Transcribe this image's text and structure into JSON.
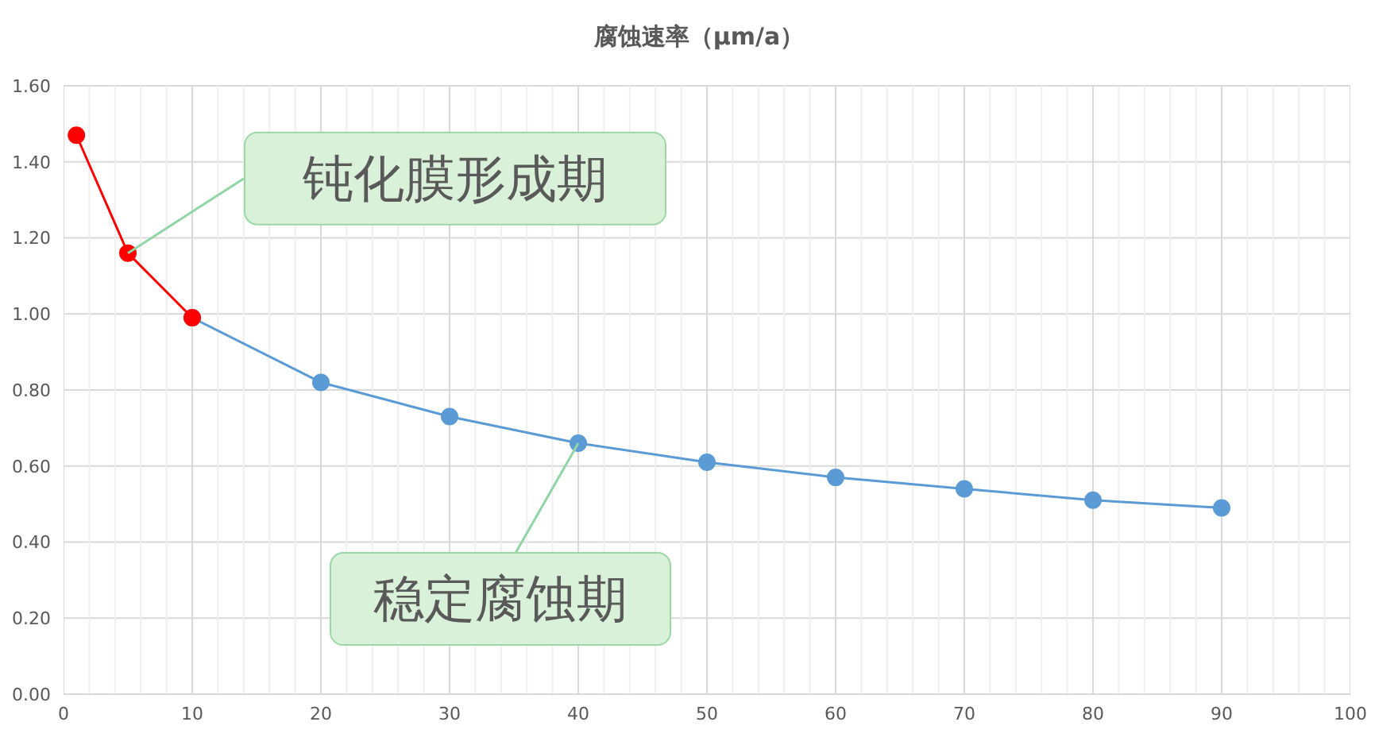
{
  "chart_data": {
    "type": "line",
    "title": "腐蚀速率（μm/a）",
    "series": [
      {
        "color": "#ff0000",
        "x": [
          1,
          5,
          10
        ],
        "values": [
          1.47,
          1.16,
          0.99
        ]
      },
      {
        "color": "#5b9bd5",
        "x": [
          10,
          20,
          30,
          40,
          50,
          60,
          70,
          80,
          90
        ],
        "values": [
          0.99,
          0.82,
          0.73,
          0.66,
          0.61,
          0.57,
          0.54,
          0.51,
          0.49
        ]
      }
    ],
    "xlim": [
      0,
      100
    ],
    "xticks": [
      0,
      {
        "value": 2,
        "label": null
      },
      {
        "value": 4,
        "label": null
      },
      {
        "value": 6,
        "label": null
      },
      {
        "value": 8,
        "label": null
      },
      10,
      {
        "value": 12,
        "label": null
      },
      {
        "value": 14,
        "label": null
      },
      {
        "value": 16,
        "label": null
      },
      {
        "value": 18,
        "label": null
      },
      20,
      {
        "value": 22,
        "label": null
      },
      {
        "value": 24,
        "label": null
      },
      {
        "value": 26,
        "label": null
      },
      {
        "value": 28,
        "label": null
      },
      30,
      {
        "value": 32,
        "label": null
      },
      {
        "value": 34,
        "label": null
      },
      {
        "value": 36,
        "label": null
      },
      {
        "value": 38,
        "label": null
      },
      40,
      {
        "value": 42,
        "label": null
      },
      {
        "value": 44,
        "label": null
      },
      {
        "value": 46,
        "label": null
      },
      {
        "value": 48,
        "label": null
      },
      50,
      {
        "value": 52,
        "label": null
      },
      {
        "value": 54,
        "label": null
      },
      {
        "value": 56,
        "label": null
      },
      {
        "value": 58,
        "label": null
      },
      60,
      {
        "value": 62,
        "label": null
      },
      {
        "value": 64,
        "label": null
      },
      {
        "value": 66,
        "label": null
      },
      {
        "value": 68,
        "label": null
      },
      70,
      {
        "value": 72,
        "label": null
      },
      {
        "value": 74,
        "label": null
      },
      {
        "value": 76,
        "label": null
      },
      {
        "value": 78,
        "label": null
      },
      80,
      {
        "value": 82,
        "label": null
      },
      {
        "value": 84,
        "label": null
      },
      {
        "value": 86,
        "label": null
      },
      {
        "value": 88,
        "label": null
      },
      90,
      {
        "value": 92,
        "label": null
      },
      {
        "value": 94,
        "label": null
      },
      {
        "value": 96,
        "label": null
      },
      {
        "value": 98,
        "label": null
      },
      100
    ],
    "ylim": [
      0,
      1.6
    ],
    "yticks": [
      {
        "value": 0,
        "label": "0.00"
      },
      {
        "value": 0.2,
        "label": "0.20"
      },
      {
        "value": 0.4,
        "label": "0.40"
      },
      {
        "value": 0.6,
        "label": "0.60"
      },
      {
        "value": 0.8,
        "label": "0.80"
      },
      {
        "value": 1,
        "label": "1.00"
      },
      {
        "value": 1.2,
        "label": "1.20"
      },
      {
        "value": 1.4,
        "label": "1.40"
      },
      {
        "value": 1.6,
        "label": "1.60"
      }
    ],
    "grid": true,
    "marker": "circle",
    "line_style": "solid",
    "annotations": [
      {
        "text": "钝化膜形成期",
        "x": 5,
        "y": 1.16
      },
      {
        "text": "稳定腐蚀期",
        "x": 40,
        "y": 0.66
      }
    ]
  }
}
